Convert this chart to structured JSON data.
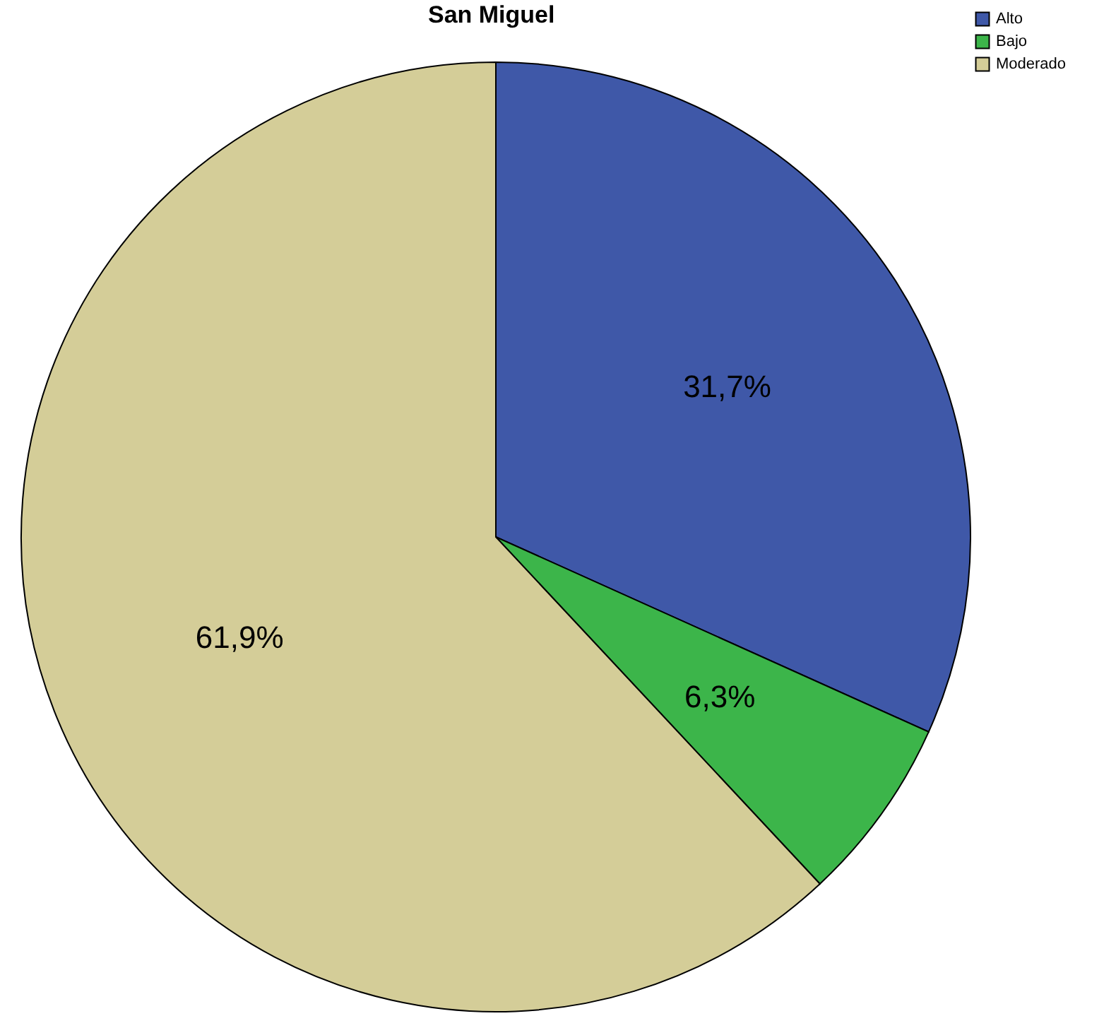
{
  "chart_data": {
    "type": "pie",
    "title": "San Miguel",
    "categories": [
      "Alto",
      "Bajo",
      "Moderado"
    ],
    "values": [
      31.7,
      6.3,
      61.9
    ],
    "colors": [
      "#3f58a8",
      "#3cb54a",
      "#d4cd98"
    ],
    "value_labels": [
      "31,7%",
      "6,3%",
      "61,9%"
    ],
    "legend": "top right"
  }
}
